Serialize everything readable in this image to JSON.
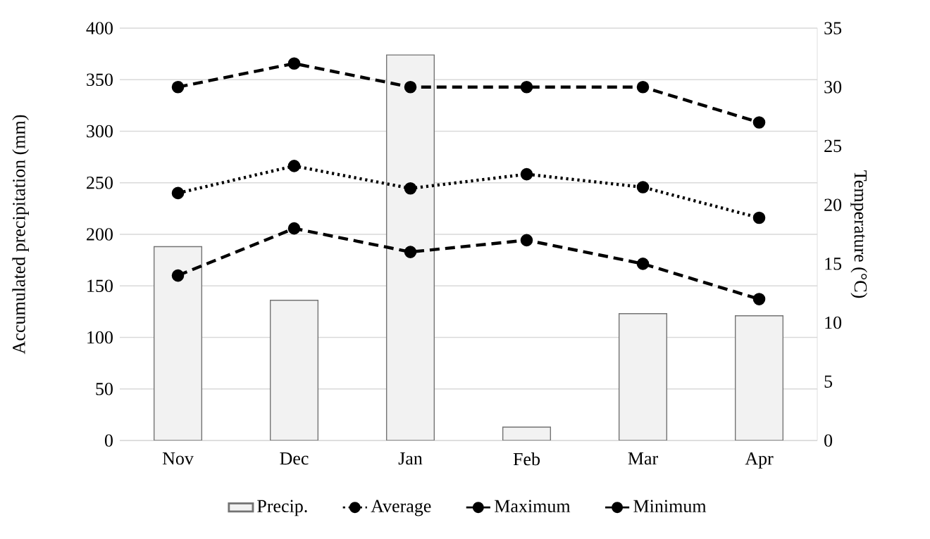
{
  "chart_data": {
    "type": "bar",
    "categories": [
      "Nov",
      "Dec",
      "Jan",
      "Feb",
      "Mar",
      "Apr"
    ],
    "ylabel": "Accumulated precipitation (mm)",
    "y2label": "Temperature (°C)",
    "ylim": [
      0,
      400
    ],
    "yticks": [
      0,
      50,
      100,
      150,
      200,
      250,
      300,
      350,
      400
    ],
    "y2lim": [
      0,
      35
    ],
    "y2ticks": [
      0,
      5,
      10,
      15,
      20,
      25,
      30,
      35
    ],
    "grid": "y",
    "legend": "bottom",
    "marker": "circle",
    "series": [
      {
        "name": "Precip.",
        "color": "#f2f2f2",
        "values": [
          188,
          136,
          374,
          13,
          123,
          121
        ]
      },
      {
        "name": "Average",
        "type": "line",
        "axis": "y2",
        "color": "#000000",
        "line_style": "dotted",
        "values": [
          21,
          23.3,
          21.4,
          22.6,
          21.5,
          18.9
        ]
      },
      {
        "name": "Maximum",
        "type": "line",
        "axis": "y2",
        "color": "#000000",
        "line_style": "dashed",
        "values": [
          30,
          32,
          30,
          30,
          30,
          27
        ]
      },
      {
        "name": "Minimum",
        "type": "line",
        "axis": "y2",
        "color": "#000000",
        "line_style": "dashed",
        "values": [
          14,
          18,
          16,
          17,
          15,
          12
        ]
      }
    ]
  }
}
